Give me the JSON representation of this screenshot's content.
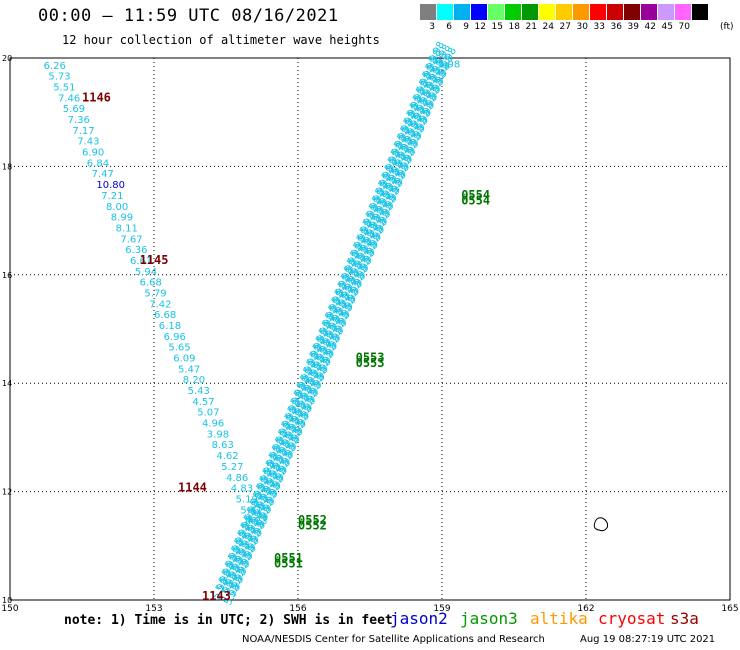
{
  "header": {
    "title": "00:00 – 11:59 UTC 08/16/2021",
    "subtitle": "12 hour collection of altimeter wave heights"
  },
  "colorbar": {
    "unit": "(ft)",
    "cells": [
      {
        "color": "#7f7f7f",
        "label": "3"
      },
      {
        "color": "#00ffff",
        "label": "6"
      },
      {
        "color": "#00b0f0",
        "label": "9"
      },
      {
        "color": "#0000ff",
        "label": "12"
      },
      {
        "color": "#66ff66",
        "label": "15"
      },
      {
        "color": "#00cc00",
        "label": "18"
      },
      {
        "color": "#009900",
        "label": "21"
      },
      {
        "color": "#ffff00",
        "label": "24"
      },
      {
        "color": "#ffcc00",
        "label": "27"
      },
      {
        "color": "#ff9900",
        "label": "30"
      },
      {
        "color": "#ff0000",
        "label": "33"
      },
      {
        "color": "#cc0000",
        "label": "36"
      },
      {
        "color": "#800000",
        "label": "39"
      },
      {
        "color": "#990099",
        "label": "42"
      },
      {
        "color": "#cc99ff",
        "label": "45"
      },
      {
        "color": "#ff66ff",
        "label": "70"
      },
      {
        "color": "#000000",
        "label": ""
      }
    ]
  },
  "chart_data": {
    "type": "scatter",
    "xlim": [
      150,
      165
    ],
    "ylim": [
      10,
      20
    ],
    "xticks": [
      150,
      153,
      156,
      159,
      162,
      165
    ],
    "yticks": [
      10,
      12,
      14,
      16,
      18,
      20
    ],
    "grid": true,
    "left_track": {
      "color": "#19c3e6",
      "points": [
        {
          "x": 150.7,
          "y": 19.8,
          "v": "6.26"
        },
        {
          "x": 150.8,
          "y": 19.6,
          "v": "5.73"
        },
        {
          "x": 150.9,
          "y": 19.4,
          "v": "5.51"
        },
        {
          "x": 151.0,
          "y": 19.2,
          "v": "7.46"
        },
        {
          "x": 151.1,
          "y": 19.0,
          "v": "5.69"
        },
        {
          "x": 151.2,
          "y": 18.8,
          "v": "7.36"
        },
        {
          "x": 151.3,
          "y": 18.6,
          "v": "7.17"
        },
        {
          "x": 151.4,
          "y": 18.4,
          "v": "7.43"
        },
        {
          "x": 151.5,
          "y": 18.2,
          "v": "6.90"
        },
        {
          "x": 151.6,
          "y": 18.0,
          "v": "6.84"
        },
        {
          "x": 151.7,
          "y": 17.8,
          "v": "7.47"
        },
        {
          "x": 151.8,
          "y": 17.6,
          "v": "10.80",
          "color": "#0000cc"
        },
        {
          "x": 151.9,
          "y": 17.4,
          "v": "7.21"
        },
        {
          "x": 152.0,
          "y": 17.2,
          "v": "8.00"
        },
        {
          "x": 152.1,
          "y": 17.0,
          "v": "8.99"
        },
        {
          "x": 152.2,
          "y": 16.8,
          "v": "8.11"
        },
        {
          "x": 152.3,
          "y": 16.6,
          "v": "7.67"
        },
        {
          "x": 152.4,
          "y": 16.4,
          "v": "6.36"
        },
        {
          "x": 152.5,
          "y": 16.2,
          "v": "6.61"
        },
        {
          "x": 152.6,
          "y": 16.0,
          "v": "5.94"
        },
        {
          "x": 152.7,
          "y": 15.8,
          "v": "6.68"
        },
        {
          "x": 152.8,
          "y": 15.6,
          "v": "5.79"
        },
        {
          "x": 152.9,
          "y": 15.4,
          "v": "7.42"
        },
        {
          "x": 153.0,
          "y": 15.2,
          "v": "6.68"
        },
        {
          "x": 153.1,
          "y": 15.0,
          "v": "6.18"
        },
        {
          "x": 153.2,
          "y": 14.8,
          "v": "6.96"
        },
        {
          "x": 153.3,
          "y": 14.6,
          "v": "5.65"
        },
        {
          "x": 153.4,
          "y": 14.4,
          "v": "6.09"
        },
        {
          "x": 153.5,
          "y": 14.2,
          "v": "5.47"
        },
        {
          "x": 153.6,
          "y": 14.0,
          "v": "8.20"
        },
        {
          "x": 153.7,
          "y": 13.8,
          "v": "5.43"
        },
        {
          "x": 153.8,
          "y": 13.6,
          "v": "4.57"
        },
        {
          "x": 153.9,
          "y": 13.4,
          "v": "5.07"
        },
        {
          "x": 154.0,
          "y": 13.2,
          "v": "4.96"
        },
        {
          "x": 154.1,
          "y": 13.0,
          "v": "3.98"
        },
        {
          "x": 154.2,
          "y": 12.8,
          "v": "8.63"
        },
        {
          "x": 154.3,
          "y": 12.6,
          "v": "4.62"
        },
        {
          "x": 154.4,
          "y": 12.4,
          "v": "5.27"
        },
        {
          "x": 154.5,
          "y": 12.2,
          "v": "4.86"
        },
        {
          "x": 154.6,
          "y": 12.0,
          "v": "4.83"
        },
        {
          "x": 154.7,
          "y": 11.8,
          "v": "5.19"
        },
        {
          "x": 154.8,
          "y": 11.6,
          "v": "5.41"
        },
        {
          "x": 154.9,
          "y": 11.4,
          "v": "4.23"
        }
      ]
    },
    "time_labels": [
      {
        "x": 151.5,
        "y": 19.2,
        "t": "1146",
        "color": "#800000"
      },
      {
        "x": 152.7,
        "y": 16.2,
        "t": "1145",
        "color": "#800000"
      },
      {
        "x": 153.5,
        "y": 12.0,
        "t": "1144",
        "color": "#800000"
      },
      {
        "x": 154.0,
        "y": 10.0,
        "t": "1143",
        "color": "#800000"
      },
      {
        "x": 159.4,
        "y": 17.4,
        "t": "0554",
        "color": "#007700"
      },
      {
        "x": 159.4,
        "y": 17.3,
        "t": "0554",
        "color": "#007700"
      },
      {
        "x": 157.2,
        "y": 14.4,
        "t": "0553",
        "color": "#007700"
      },
      {
        "x": 157.2,
        "y": 14.3,
        "t": "0553",
        "color": "#007700"
      },
      {
        "x": 156.0,
        "y": 11.4,
        "t": "0552",
        "color": "#007700"
      },
      {
        "x": 156.0,
        "y": 11.3,
        "t": "0552",
        "color": "#007700"
      },
      {
        "x": 155.5,
        "y": 10.7,
        "t": "0551",
        "color": "#007700"
      },
      {
        "x": 155.5,
        "y": 10.6,
        "t": "0551",
        "color": "#007700"
      }
    ],
    "dense_track": {
      "color": "#19c3e6",
      "start": {
        "x": 154.5,
        "y": 10.0
      },
      "end": {
        "x": 159.0,
        "y": 19.9
      },
      "top_label": "5.98"
    },
    "island": {
      "x": 162.3,
      "y": 11.4
    }
  },
  "footer": {
    "note": "note:  1) Time is in UTC;  2) SWH is in feet",
    "legend": [
      {
        "name": "jason2",
        "color": "#0000cc"
      },
      {
        "name": "jason3",
        "color": "#009900"
      },
      {
        "name": "altika",
        "color": "#ff9900"
      },
      {
        "name": "cryosat",
        "color": "#ff0000"
      },
      {
        "name": "s3a",
        "color": "#990000"
      }
    ],
    "credit": "NOAA/NESDIS Center for Satellite Applications and Research",
    "credit_date": "Aug 19 08:27:19 UTC 2021"
  }
}
